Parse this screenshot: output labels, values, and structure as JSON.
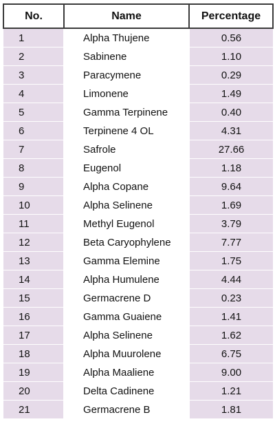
{
  "headers": {
    "no": "No.",
    "name": "Name",
    "percentage": "Percentage"
  },
  "rows": [
    {
      "no": "1",
      "name": "Alpha Thujene",
      "percentage": "0.56"
    },
    {
      "no": "2",
      "name": "Sabinene",
      "percentage": "1.10"
    },
    {
      "no": "3",
      "name": "Paracymene",
      "percentage": "0.29"
    },
    {
      "no": "4",
      "name": "Limonene",
      "percentage": "1.49"
    },
    {
      "no": "5",
      "name": "Gamma Terpinene",
      "percentage": "0.40"
    },
    {
      "no": "6",
      "name": "Terpinene 4 OL",
      "percentage": "4.31"
    },
    {
      "no": "7",
      "name": "Safrole",
      "percentage": "27.66"
    },
    {
      "no": "8",
      "name": "Eugenol",
      "percentage": "1.18"
    },
    {
      "no": "9",
      "name": "Alpha Copane",
      "percentage": "9.64"
    },
    {
      "no": "10",
      "name": "Alpha Selinene",
      "percentage": "1.69"
    },
    {
      "no": "11",
      "name": "Methyl Eugenol",
      "percentage": "3.79"
    },
    {
      "no": "12",
      "name": "Beta Caryophylene",
      "percentage": "7.77"
    },
    {
      "no": "13",
      "name": "Gamma Elemine",
      "percentage": "1.75"
    },
    {
      "no": "14",
      "name": "Alpha Humulene",
      "percentage": "4.44"
    },
    {
      "no": "15",
      "name": "Germacrene D",
      "percentage": "0.23"
    },
    {
      "no": "16",
      "name": "Gamma Guaiene",
      "percentage": "1.41"
    },
    {
      "no": "17",
      "name": "Alpha Selinene",
      "percentage": "1.62"
    },
    {
      "no": "18",
      "name": "Alpha Muurolene",
      "percentage": "6.75"
    },
    {
      "no": "19",
      "name": "Alpha Maaliene",
      "percentage": "9.00"
    },
    {
      "no": "20",
      "name": "Delta Cadinene",
      "percentage": "1.21"
    },
    {
      "no": "21",
      "name": "Germacrene B",
      "percentage": "1.81"
    }
  ],
  "colors": {
    "shaded_column": "#e6dbe9",
    "header_border": "#3a3a3a",
    "background": "#ffffff"
  }
}
